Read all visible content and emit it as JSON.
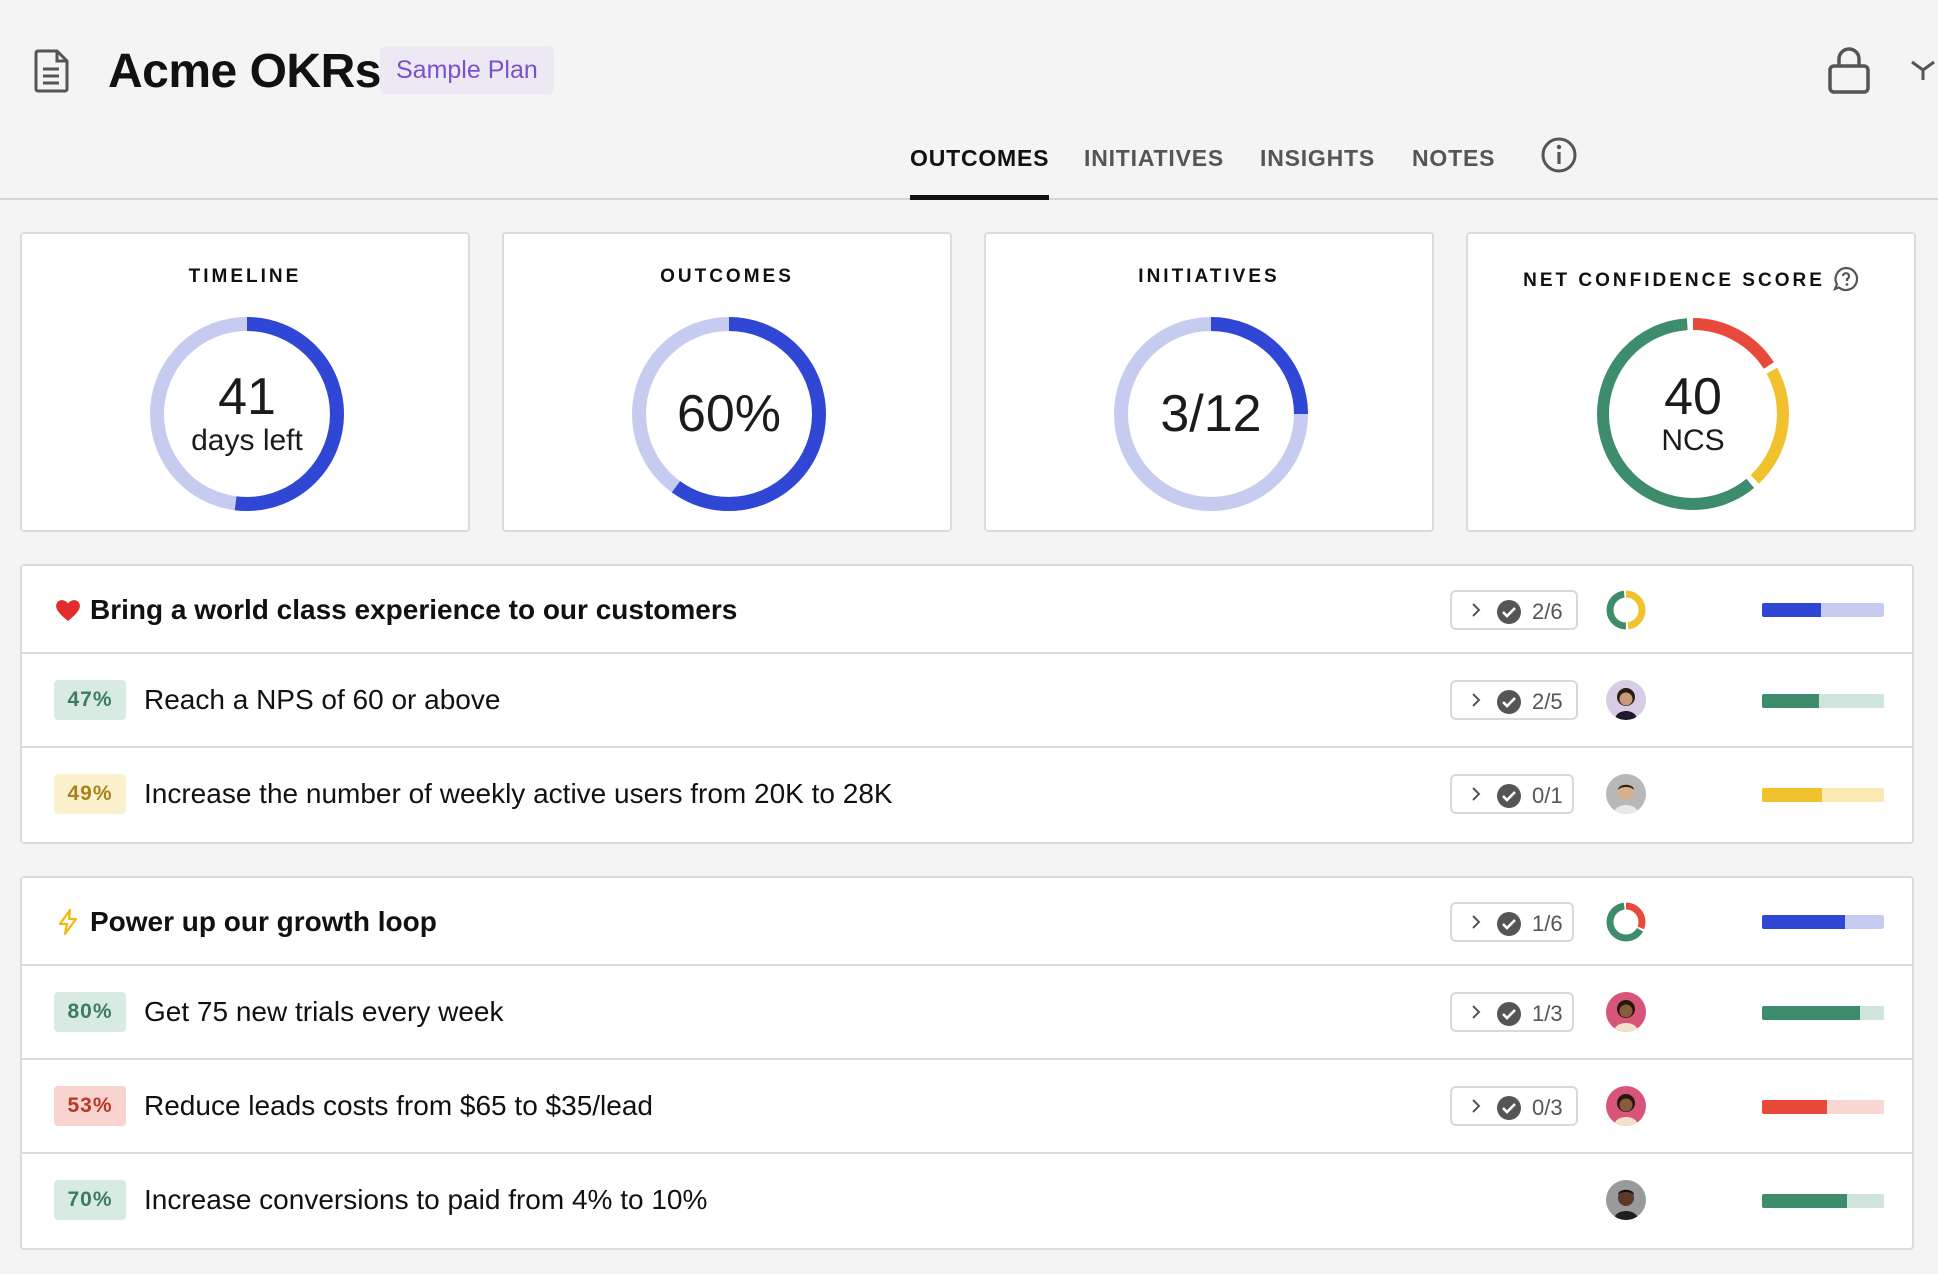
{
  "app": {
    "title": "Acme OKRs",
    "plan_badge": "Sample Plan",
    "icons": [
      "document-icon",
      "lock-icon",
      "collapse-icon"
    ]
  },
  "tabs": [
    {
      "label": "OUTCOMES",
      "active": true
    },
    {
      "label": "INITIATIVES",
      "active": false
    },
    {
      "label": "INSIGHTS",
      "active": false
    },
    {
      "label": "NOTES",
      "active": false
    }
  ],
  "metrics": {
    "timeline": {
      "label": "TIMELINE",
      "value": "41",
      "unit": "days left",
      "progress": 0.52
    },
    "outcomes": {
      "label": "OUTCOMES",
      "value": "60%",
      "progress": 0.6
    },
    "initiatives": {
      "label": "INITIATIVES",
      "value": "3/12",
      "progress": 0.25
    },
    "ncs": {
      "label": "NET CONFIDENCE SCORE",
      "value": "40",
      "unit": "NCS",
      "segments": [
        {
          "color": "#e8493a",
          "fraction": 0.17
        },
        {
          "color": "#f2c12e",
          "fraction": 0.22
        },
        {
          "color": "#3d8d6c",
          "fraction": 0.61
        }
      ]
    }
  },
  "colors": {
    "blue": "#3046d4",
    "blue_light": "#c5ccf0",
    "green": "#3d8d6c",
    "green_light": "#cfe5dc",
    "yellow": "#f2c12e",
    "yellow_light": "#fae9b2",
    "red": "#e8493a",
    "red_light": "#f8d6d2"
  },
  "objectives": [
    {
      "emoji": "heart",
      "title": "Bring a world class experience to our customers",
      "count": "2/6",
      "progress": 0.48,
      "ring": [
        {
          "color": "#f2c12e",
          "fraction": 0.5
        },
        {
          "color": "#3d8d6c",
          "fraction": 0.5
        }
      ],
      "key_results": [
        {
          "pct": "47%",
          "title": "Reach a NPS of 60 or above",
          "count": "2/5",
          "status": "green",
          "progress": 0.47,
          "avatar": "avatar-1"
        },
        {
          "pct": "49%",
          "title": "Increase the number of weekly active users from 20K to 28K",
          "count": "0/1",
          "status": "yellow",
          "progress": 0.49,
          "avatar": "avatar-2"
        }
      ]
    },
    {
      "emoji": "lightning",
      "title": "Power up our growth loop",
      "count": "1/6",
      "progress": 0.68,
      "ring": [
        {
          "color": "#e8493a",
          "fraction": 0.33
        },
        {
          "color": "#3d8d6c",
          "fraction": 0.67
        }
      ],
      "key_results": [
        {
          "pct": "80%",
          "title": "Get 75 new trials every week",
          "count": "1/3",
          "status": "green",
          "progress": 0.8,
          "avatar": "avatar-3"
        },
        {
          "pct": "53%",
          "title": "Reduce leads costs from $65 to $35/lead",
          "count": "0/3",
          "status": "red",
          "progress": 0.53,
          "avatar": "avatar-4"
        },
        {
          "pct": "70%",
          "title": "Increase conversions to paid from 4% to 10%",
          "count": "",
          "status": "green",
          "progress": 0.7,
          "avatar": "avatar-5"
        }
      ]
    }
  ]
}
